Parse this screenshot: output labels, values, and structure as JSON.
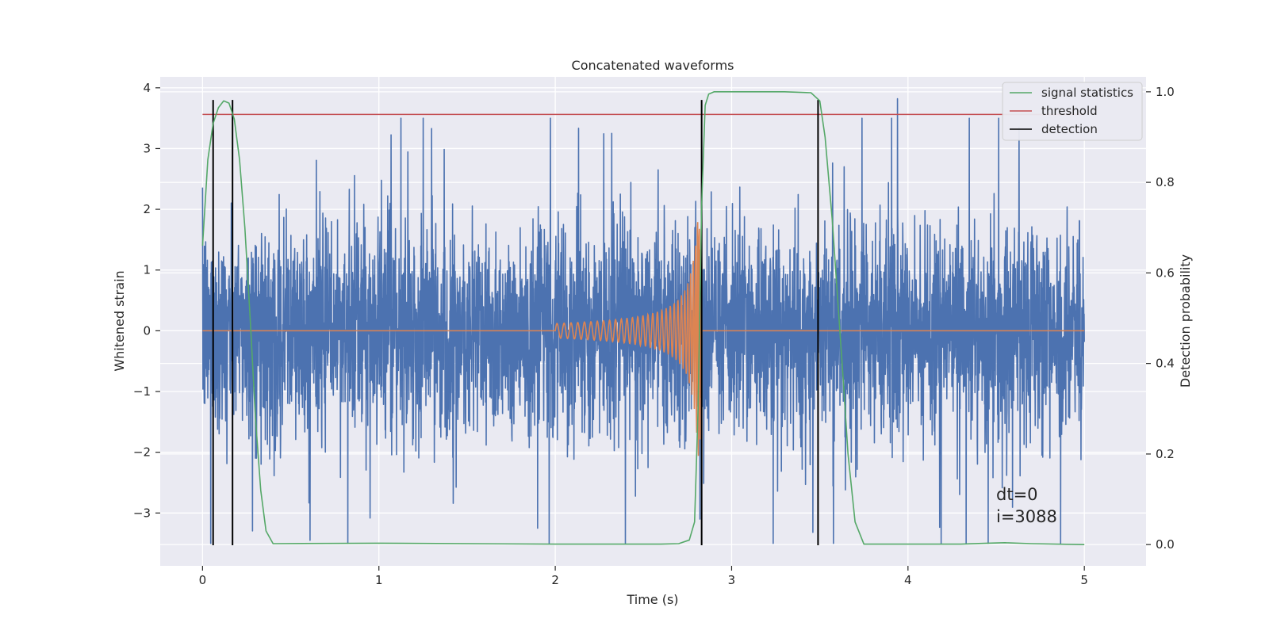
{
  "chart_data": {
    "type": "line",
    "title": "Concatenated waveforms",
    "xlabel": "Time (s)",
    "ylabel": "Whitened strain",
    "ylabel_right": "Detection probability",
    "xlim": [
      -0.24,
      5.35
    ],
    "ylim": [
      -3.87,
      4.18
    ],
    "ylim_right": [
      -0.047,
      1.033
    ],
    "x_ticks": [
      0,
      1,
      2,
      3,
      4,
      5
    ],
    "x_tick_labels": [
      "0",
      "1",
      "2",
      "3",
      "4",
      "5"
    ],
    "y_ticks": [
      -3,
      -2,
      -1,
      0,
      1,
      2,
      3,
      4
    ],
    "y_tick_labels": [
      "−3",
      "−2",
      "−1",
      "0",
      "1",
      "2",
      "3",
      "4"
    ],
    "y_right_ticks": [
      0.0,
      0.2,
      0.4,
      0.6,
      0.8,
      1.0
    ],
    "y_right_tick_labels": [
      "0.0",
      "0.2",
      "0.4",
      "0.6",
      "0.8",
      "1.0"
    ],
    "grid": true,
    "legend_position": "top-right",
    "series": [
      {
        "name": "whitened strain (noise)",
        "axis": "left",
        "color": "#4c72b0",
        "x_range": [
          0,
          5
        ],
        "typical_amplitude": 1.0,
        "peak_values": [
          {
            "x": 0.61,
            "y": -3.45
          },
          {
            "x": 1.9,
            "y": -3.25
          },
          {
            "x": 2.32,
            "y": 3.25
          },
          {
            "x": 2.82,
            "y": -3.1
          },
          {
            "x": 3.94,
            "y": 3.82
          },
          {
            "x": 4.33,
            "y": -3.5
          },
          {
            "x": 4.63,
            "y": 3.35
          }
        ]
      },
      {
        "name": "injected chirp",
        "axis": "left",
        "color": "#dd8452",
        "x_range": [
          0,
          5
        ],
        "chirp_start": 2.0,
        "chirp_end": 2.83,
        "amplitude_start": 0.12,
        "amplitude_end": 2.1
      },
      {
        "name": "signal statistics",
        "axis": "right",
        "color": "#55a868",
        "x": [
          0.0,
          0.03,
          0.06,
          0.09,
          0.12,
          0.15,
          0.18,
          0.21,
          0.24,
          0.27,
          0.3,
          0.33,
          0.36,
          0.4,
          1.0,
          2.0,
          2.6,
          2.7,
          2.76,
          2.79,
          2.81,
          2.83,
          2.85,
          2.87,
          2.9,
          3.0,
          3.3,
          3.45,
          3.5,
          3.53,
          3.57,
          3.6,
          3.63,
          3.66,
          3.7,
          3.75,
          4.0,
          4.3,
          4.45,
          4.55,
          4.7,
          5.0
        ],
        "values": [
          0.66,
          0.85,
          0.93,
          0.965,
          0.98,
          0.975,
          0.94,
          0.85,
          0.7,
          0.5,
          0.28,
          0.12,
          0.03,
          0.002,
          0.003,
          0.001,
          0.001,
          0.002,
          0.01,
          0.05,
          0.3,
          0.75,
          0.97,
          0.995,
          1.0,
          1.0,
          1.0,
          0.998,
          0.98,
          0.9,
          0.72,
          0.55,
          0.38,
          0.2,
          0.05,
          0.001,
          0.001,
          0.001,
          0.003,
          0.004,
          0.002,
          0.0
        ]
      },
      {
        "name": "threshold",
        "axis": "right",
        "color": "#c44e52",
        "x_range": [
          0,
          5
        ],
        "value": 0.95
      },
      {
        "name": "detection",
        "axis": "left",
        "color": "#000000",
        "x": [
          0.06,
          0.17,
          2.83,
          3.49
        ],
        "y_range": [
          -3.53,
          3.8
        ]
      }
    ],
    "legend": [
      {
        "label": "signal statistics",
        "color": "#55a868"
      },
      {
        "label": "threshold",
        "color": "#c44e52"
      },
      {
        "label": "detection",
        "color": "#000000"
      }
    ],
    "annotations": [
      "dt=0",
      "i=3088"
    ]
  }
}
